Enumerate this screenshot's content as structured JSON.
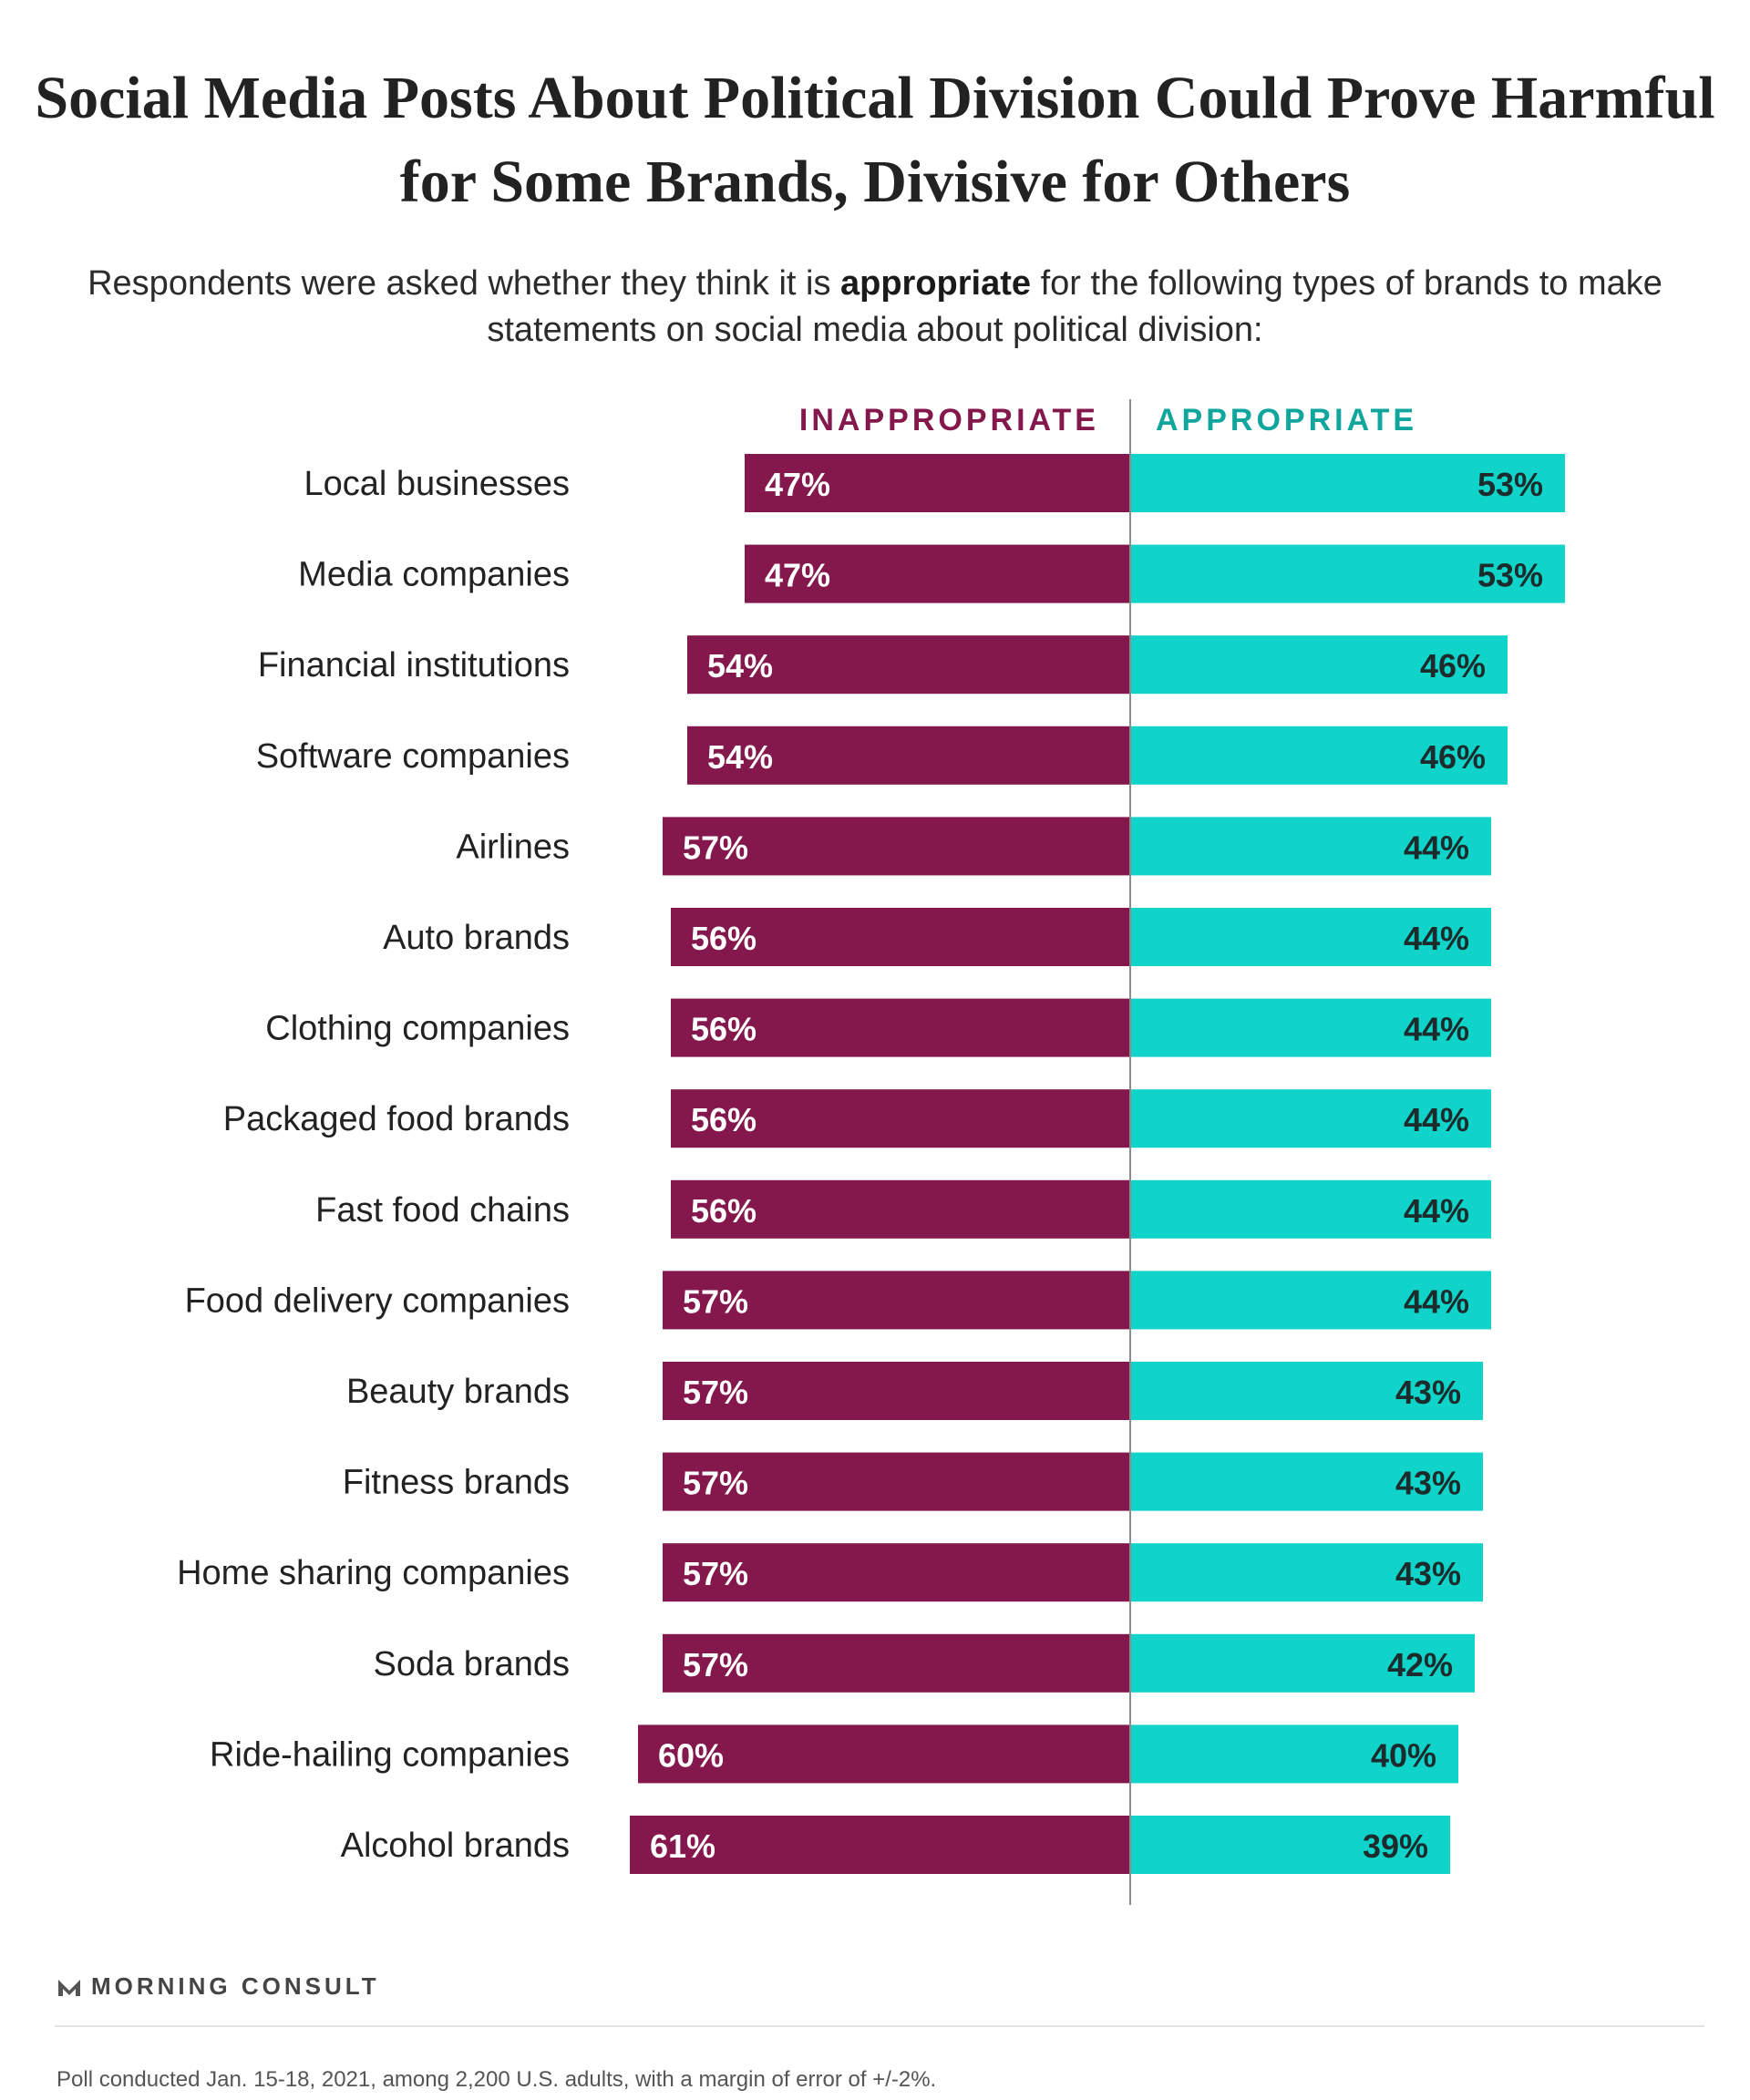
{
  "chart_data": {
    "type": "bar",
    "title": "Social Media Posts About Political Division Could Prove Harmful for Some Brands, Divisive for Others",
    "subtitle": {
      "before": "Respondents were asked whether they think it is ",
      "emphasis": "appropriate",
      "after": " for the following types of brands to make statements on social media about political division:"
    },
    "orientation": "horizontal-diverging",
    "categories": [
      "Local businesses",
      "Media companies",
      "Financial institutions",
      "Software companies",
      "Airlines",
      "Auto brands",
      "Clothing companies",
      "Packaged food brands",
      "Fast food chains",
      "Food delivery companies",
      "Beauty brands",
      "Fitness brands",
      "Home sharing companies",
      "Soda brands",
      "Ride-hailing companies",
      "Alcohol brands"
    ],
    "series": [
      {
        "name": "INAPPROPRIATE",
        "color": "#84174b",
        "values": [
          47,
          47,
          54,
          54,
          57,
          56,
          56,
          56,
          56,
          57,
          57,
          57,
          57,
          57,
          60,
          61
        ]
      },
      {
        "name": "APPROPRIATE",
        "color": "#10d3c9",
        "values": [
          53,
          53,
          46,
          46,
          44,
          44,
          44,
          44,
          44,
          44,
          43,
          43,
          43,
          42,
          40,
          39
        ]
      }
    ],
    "value_suffix": "%",
    "legend": "top-center",
    "grid": false
  },
  "source": {
    "brand": "MORNING CONSULT",
    "note": "Poll conducted Jan. 15-18, 2021, among 2,200 U.S. adults, with a margin of error of +/-2%."
  }
}
